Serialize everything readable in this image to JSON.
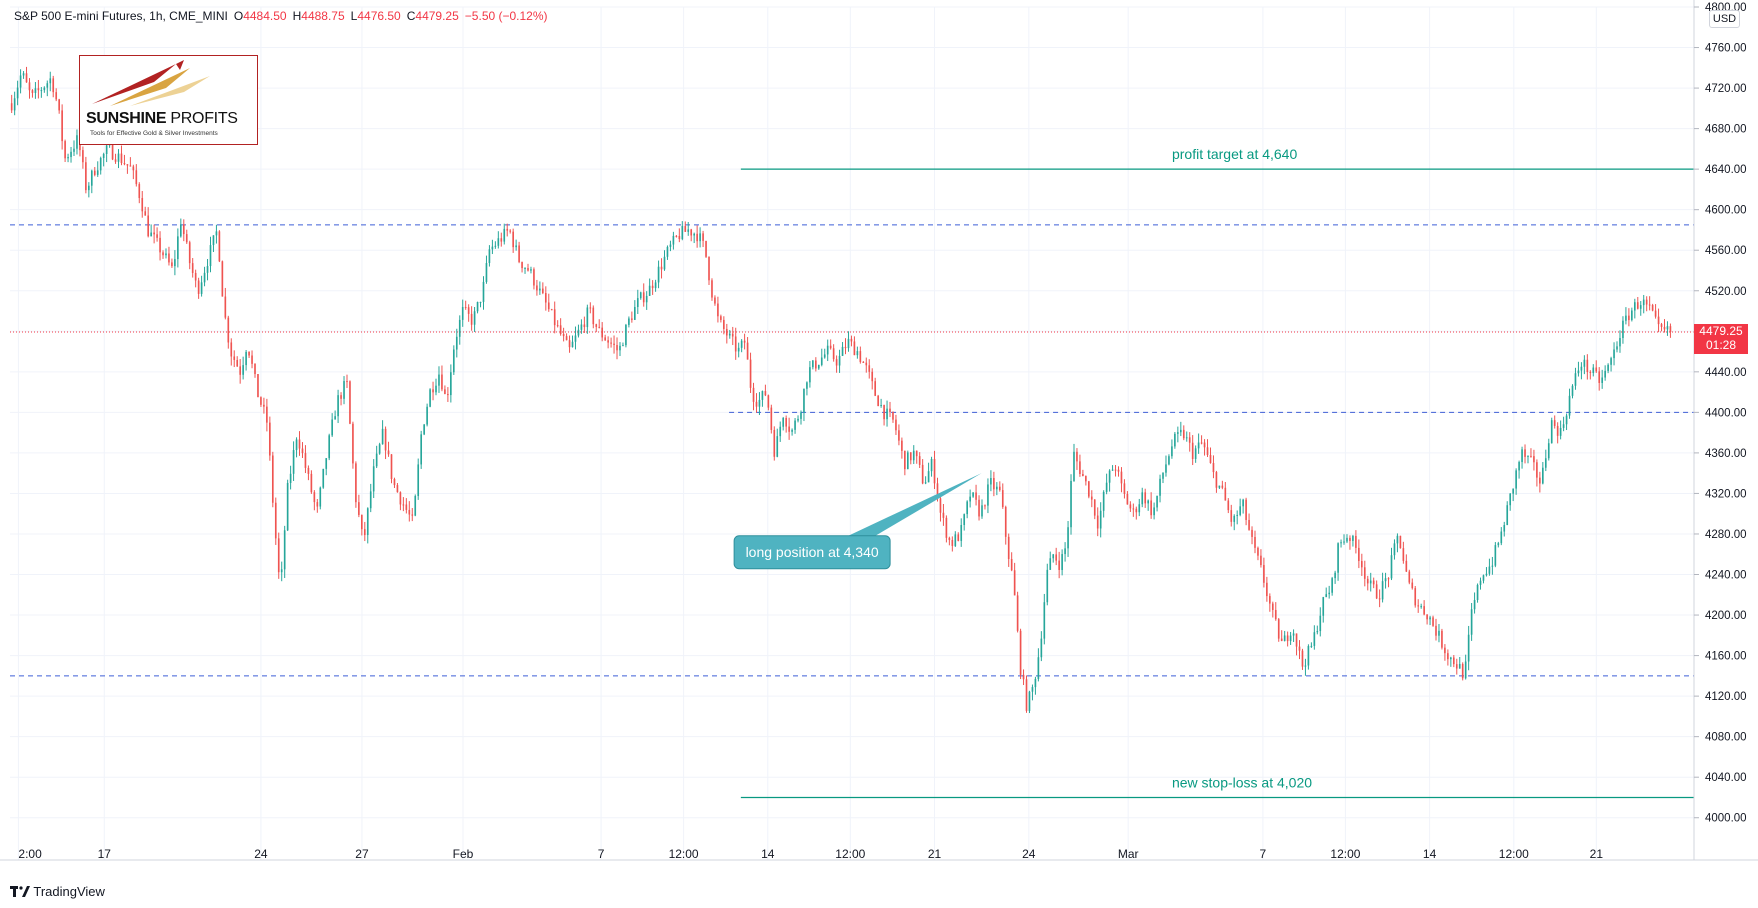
{
  "header": {
    "symbol": "S&P 500 E-mini Futures, 1h, CME_MINI",
    "open_label": "O",
    "open": "4484.50",
    "high_label": "H",
    "high": "4488.75",
    "low_label": "L",
    "low": "4476.50",
    "close_label": "C",
    "close": "4479.25",
    "change": "−5.50 (−0.12%)"
  },
  "logo": {
    "name_bold": "SUNSHINE",
    "name_light": " PROFITS",
    "tagline": "Tools for Effective Gold & Silver Investments"
  },
  "footer": {
    "brand": "TradingView"
  },
  "price_scale": {
    "currency": "USD",
    "last_price": "4479.25",
    "countdown": "01:28"
  },
  "colors": {
    "up": "#26a69a",
    "down": "#ef5350",
    "level_line": "#3f5fd6",
    "target_line": "#089981",
    "callout": "#4fb3c1",
    "last_price": "#f23645"
  },
  "chart_data": {
    "type": "candlestick",
    "timeframe": "1h",
    "y_axis": {
      "range": [
        3980,
        4800
      ],
      "ticks": [
        4000,
        4040,
        4080,
        4120,
        4160,
        4200,
        4240,
        4280,
        4320,
        4360,
        4400,
        4440,
        4480,
        4520,
        4560,
        4600,
        4640,
        4680,
        4720,
        4760,
        4800
      ],
      "tick_labels": [
        "4000.00",
        "4040.00",
        "4080.00",
        "4120.00",
        "4160.00",
        "4200.00",
        "4240.00",
        "4280.00",
        "4320.00",
        "4360.00",
        "4400.00",
        "4440.00",
        "4480.00",
        "4520.00",
        "4560.00",
        "4600.00",
        "4640.00",
        "4680.00",
        "4720.00",
        "4760.00",
        "4800.00"
      ]
    },
    "x_axis": {
      "tick_labels": [
        {
          "label": "2:00",
          "pos": 0.005
        },
        {
          "label": "17",
          "pos": 0.056
        },
        {
          "label": "24",
          "pos": 0.149
        },
        {
          "label": "27",
          "pos": 0.209
        },
        {
          "label": "Feb",
          "pos": 0.269
        },
        {
          "label": "7",
          "pos": 0.351
        },
        {
          "label": "12:00",
          "pos": 0.4
        },
        {
          "label": "14",
          "pos": 0.45
        },
        {
          "label": "12:00",
          "pos": 0.499
        },
        {
          "label": "21",
          "pos": 0.549
        },
        {
          "label": "24",
          "pos": 0.605
        },
        {
          "label": "Mar",
          "pos": 0.664
        },
        {
          "label": "7",
          "pos": 0.744
        },
        {
          "label": "12:00",
          "pos": 0.793
        },
        {
          "label": "14",
          "pos": 0.843
        },
        {
          "label": "12:00",
          "pos": 0.893
        },
        {
          "label": "21",
          "pos": 0.942
        }
      ]
    },
    "price_path": [
      [
        0.0,
        4705
      ],
      [
        0.006,
        4735
      ],
      [
        0.012,
        4710
      ],
      [
        0.018,
        4720
      ],
      [
        0.024,
        4730
      ],
      [
        0.028,
        4700
      ],
      [
        0.032,
        4650
      ],
      [
        0.04,
        4670
      ],
      [
        0.045,
        4620
      ],
      [
        0.05,
        4640
      ],
      [
        0.058,
        4660
      ],
      [
        0.066,
        4650
      ],
      [
        0.072,
        4640
      ],
      [
        0.078,
        4610
      ],
      [
        0.082,
        4580
      ],
      [
        0.09,
        4560
      ],
      [
        0.097,
        4540
      ],
      [
        0.102,
        4590
      ],
      [
        0.107,
        4550
      ],
      [
        0.112,
        4520
      ],
      [
        0.118,
        4550
      ],
      [
        0.124,
        4580
      ],
      [
        0.128,
        4500
      ],
      [
        0.132,
        4460
      ],
      [
        0.138,
        4440
      ],
      [
        0.142,
        4470
      ],
      [
        0.148,
        4420
      ],
      [
        0.154,
        4390
      ],
      [
        0.158,
        4300
      ],
      [
        0.162,
        4220
      ],
      [
        0.166,
        4320
      ],
      [
        0.172,
        4380
      ],
      [
        0.178,
        4340
      ],
      [
        0.184,
        4300
      ],
      [
        0.19,
        4360
      ],
      [
        0.196,
        4410
      ],
      [
        0.202,
        4430
      ],
      [
        0.207,
        4320
      ],
      [
        0.212,
        4270
      ],
      [
        0.218,
        4340
      ],
      [
        0.224,
        4380
      ],
      [
        0.23,
        4330
      ],
      [
        0.236,
        4310
      ],
      [
        0.242,
        4290
      ],
      [
        0.247,
        4380
      ],
      [
        0.252,
        4420
      ],
      [
        0.258,
        4440
      ],
      [
        0.262,
        4410
      ],
      [
        0.267,
        4470
      ],
      [
        0.272,
        4500
      ],
      [
        0.278,
        4490
      ],
      [
        0.284,
        4520
      ],
      [
        0.288,
        4560
      ],
      [
        0.294,
        4570
      ],
      [
        0.3,
        4580
      ],
      [
        0.306,
        4550
      ],
      [
        0.312,
        4540
      ],
      [
        0.318,
        4520
      ],
      [
        0.324,
        4500
      ],
      [
        0.33,
        4480
      ],
      [
        0.336,
        4460
      ],
      [
        0.342,
        4480
      ],
      [
        0.348,
        4500
      ],
      [
        0.354,
        4480
      ],
      [
        0.36,
        4470
      ],
      [
        0.366,
        4460
      ],
      [
        0.372,
        4490
      ],
      [
        0.378,
        4510
      ],
      [
        0.384,
        4520
      ],
      [
        0.39,
        4540
      ],
      [
        0.396,
        4560
      ],
      [
        0.402,
        4575
      ],
      [
        0.408,
        4580
      ],
      [
        0.414,
        4575
      ],
      [
        0.418,
        4560
      ],
      [
        0.422,
        4520
      ],
      [
        0.426,
        4490
      ],
      [
        0.43,
        4480
      ],
      [
        0.434,
        4470
      ],
      [
        0.438,
        4460
      ],
      [
        0.442,
        4470
      ],
      [
        0.446,
        4420
      ],
      [
        0.45,
        4410
      ],
      [
        0.455,
        4420
      ],
      [
        0.46,
        4360
      ],
      [
        0.465,
        4400
      ],
      [
        0.47,
        4380
      ],
      [
        0.475,
        4400
      ],
      [
        0.48,
        4440
      ],
      [
        0.486,
        4450
      ],
      [
        0.492,
        4460
      ],
      [
        0.498,
        4450
      ],
      [
        0.504,
        4470
      ],
      [
        0.51,
        4460
      ],
      [
        0.516,
        4440
      ],
      [
        0.52,
        4420
      ],
      [
        0.526,
        4400
      ],
      [
        0.532,
        4390
      ],
      [
        0.538,
        4350
      ],
      [
        0.544,
        4360
      ],
      [
        0.55,
        4330
      ],
      [
        0.555,
        4350
      ],
      [
        0.56,
        4300
      ],
      [
        0.566,
        4270
      ],
      [
        0.572,
        4280
      ],
      [
        0.578,
        4320
      ],
      [
        0.584,
        4300
      ],
      [
        0.59,
        4330
      ],
      [
        0.596,
        4320
      ],
      [
        0.6,
        4270
      ],
      [
        0.604,
        4230
      ],
      [
        0.608,
        4150
      ],
      [
        0.612,
        4110
      ],
      [
        0.616,
        4130
      ],
      [
        0.62,
        4170
      ],
      [
        0.624,
        4240
      ],
      [
        0.628,
        4260
      ],
      [
        0.632,
        4250
      ],
      [
        0.636,
        4270
      ],
      [
        0.64,
        4360
      ],
      [
        0.645,
        4340
      ],
      [
        0.65,
        4320
      ],
      [
        0.655,
        4290
      ],
      [
        0.66,
        4330
      ],
      [
        0.665,
        4350
      ],
      [
        0.67,
        4320
      ],
      [
        0.676,
        4300
      ],
      [
        0.682,
        4320
      ],
      [
        0.688,
        4300
      ],
      [
        0.694,
        4340
      ],
      [
        0.7,
        4370
      ],
      [
        0.706,
        4380
      ],
      [
        0.712,
        4360
      ],
      [
        0.718,
        4370
      ],
      [
        0.724,
        4340
      ],
      [
        0.73,
        4320
      ],
      [
        0.736,
        4290
      ],
      [
        0.742,
        4310
      ],
      [
        0.748,
        4270
      ],
      [
        0.754,
        4240
      ],
      [
        0.76,
        4200
      ],
      [
        0.766,
        4170
      ],
      [
        0.772,
        4190
      ],
      [
        0.778,
        4150
      ],
      [
        0.784,
        4170
      ],
      [
        0.79,
        4210
      ],
      [
        0.796,
        4230
      ],
      [
        0.8,
        4270
      ],
      [
        0.806,
        4280
      ],
      [
        0.812,
        4260
      ],
      [
        0.818,
        4230
      ],
      [
        0.824,
        4220
      ],
      [
        0.83,
        4240
      ],
      [
        0.836,
        4280
      ],
      [
        0.842,
        4230
      ],
      [
        0.848,
        4210
      ],
      [
        0.854,
        4200
      ],
      [
        0.86,
        4180
      ],
      [
        0.866,
        4160
      ],
      [
        0.872,
        4150
      ],
      [
        0.876,
        4140
      ],
      [
        0.88,
        4200
      ],
      [
        0.886,
        4240
      ],
      [
        0.892,
        4250
      ],
      [
        0.898,
        4280
      ],
      [
        0.904,
        4320
      ],
      [
        0.91,
        4360
      ],
      [
        0.916,
        4350
      ],
      [
        0.922,
        4330
      ],
      [
        0.928,
        4390
      ],
      [
        0.934,
        4380
      ],
      [
        0.94,
        4420
      ],
      [
        0.946,
        4450
      ],
      [
        0.952,
        4440
      ],
      [
        0.958,
        4430
      ],
      [
        0.964,
        4450
      ],
      [
        0.97,
        4480
      ],
      [
        0.976,
        4500
      ],
      [
        0.982,
        4510
      ],
      [
        0.988,
        4500
      ],
      [
        0.993,
        4480
      ],
      [
        1.0,
        4479.25
      ]
    ],
    "horizontal_levels": [
      {
        "price": 4585,
        "style": "dashed",
        "from": 0.0,
        "to": 1.0
      },
      {
        "price": 4400,
        "style": "dashed",
        "from": 0.427,
        "to": 1.0
      },
      {
        "price": 4140,
        "style": "dashed",
        "from": 0.0,
        "to": 1.0
      },
      {
        "price": 4479.25,
        "style": "dotted-last",
        "from": 0.0,
        "to": 1.0
      }
    ],
    "targets": [
      {
        "price": 4640,
        "label": "profit target at 4,640",
        "from": 0.434,
        "to": 1.0,
        "label_at": 0.69
      },
      {
        "price": 4020,
        "label": "new stop-loss at 4,020",
        "from": 0.434,
        "to": 1.0,
        "label_at": 0.69
      }
    ],
    "callout": {
      "label": "long position at 4,340",
      "anchor_x": 0.577,
      "anchor_price": 4340,
      "box_x": 0.43,
      "box_price": 4262
    }
  }
}
